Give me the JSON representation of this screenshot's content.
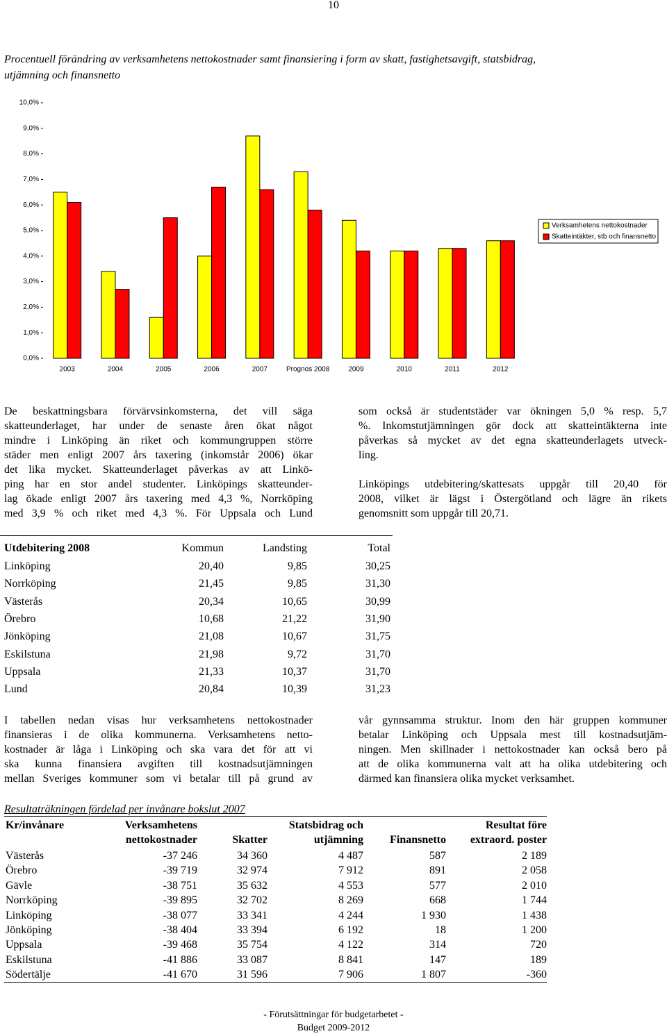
{
  "page_number": "10",
  "chart_data": {
    "type": "bar",
    "title": "Procentuell förändring av verksamhetens nettokostnader samt finansiering i form av skatt, fastighetsavgift, statsbidrag, utjämning och finansnetto",
    "categories": [
      "2003",
      "2004",
      "2005",
      "2006",
      "2007",
      "Prognos 2008",
      "2009",
      "2010",
      "2011",
      "2012"
    ],
    "series": [
      {
        "name": "Verksamhetens nettokostnader",
        "color": "#ffff00",
        "values": [
          6.5,
          3.4,
          1.6,
          4.0,
          8.7,
          7.3,
          5.4,
          4.2,
          4.3,
          4.6
        ]
      },
      {
        "name": "Skatteintäkter, stb och finansnetto",
        "color": "#ff0000",
        "values": [
          6.1,
          2.7,
          5.5,
          6.7,
          6.6,
          5.8,
          4.2,
          4.2,
          4.3,
          4.6
        ]
      }
    ],
    "ylim": [
      0,
      10
    ],
    "yticks": [
      {
        "value": 0,
        "label": "0,0%"
      },
      {
        "value": 1,
        "label": "1,0%"
      },
      {
        "value": 2,
        "label": "2,0%"
      },
      {
        "value": 3,
        "label": "3,0%"
      },
      {
        "value": 4,
        "label": "4,0%"
      },
      {
        "value": 5,
        "label": "5,0%"
      },
      {
        "value": 6,
        "label": "6,0%"
      },
      {
        "value": 7,
        "label": "7,0%"
      },
      {
        "value": 8,
        "label": "8,0%"
      },
      {
        "value": 9,
        "label": "9,0%"
      },
      {
        "value": 10,
        "label": "10,0%"
      }
    ],
    "legend": "right"
  },
  "text_1": {
    "columns": [
      [
        [
          "De beskattningsbara förvärvsinkomsterna, det vill säga",
          "skatteunderlaget, har under de senaste åren ökat något",
          "mindre i Linköping än riket och kommungruppen större",
          "städer men enligt 2007 års taxering (inkomstår 2006) ökar",
          "det lika mycket. Skatteunderlaget påverkas av att Linkö-",
          "ping har en stor andel studenter. Linköpings skatteunder-",
          "lag ökade enligt 2007 års taxering med 4,3 %, Norrköping",
          "med 3,9 % och riket med 4,3 %. För Uppsala och Lund"
        ]
      ],
      [
        [
          "som också är studentstäder var ökningen 5,0 % resp. 5,7",
          "%. Inkomstutjämningen gör dock att skatteintäkterna inte",
          "påverkas så mycket av det egna skatteunderlagets utveck-",
          "ling."
        ],
        [
          "Linköpings utdebitering/skattesats uppgår till 20,40 för",
          "2008, vilket är lägst i Östergötland och lägre än rikets",
          "genomsnitt som uppgår till 20,71."
        ]
      ]
    ]
  },
  "table_1": {
    "header": [
      "Utdebitering 2008",
      "Kommun",
      "Landsting",
      "Total"
    ],
    "rows": [
      [
        "Linköping",
        "20,40",
        "9,85",
        "30,25"
      ],
      [
        "Norrköping",
        "21,45",
        "9,85",
        "31,30"
      ],
      [
        "Västerås",
        "20,34",
        "10,65",
        "30,99"
      ],
      [
        "Örebro",
        "10,68",
        "21,22",
        "31,90"
      ],
      [
        "Jönköping",
        "21,08",
        "10,67",
        "31,75"
      ],
      [
        "Eskilstuna",
        "21,98",
        "9,72",
        "31,70"
      ],
      [
        "Uppsala",
        "21,33",
        "10,37",
        "31,70"
      ],
      [
        "Lund",
        "20,84",
        "10,39",
        "31,23"
      ]
    ]
  },
  "text_2": {
    "columns": [
      [
        [
          "I tabellen nedan visas hur verksamhetens nettokostnader",
          "finansieras i de olika kommunerna. Verksamhetens netto-",
          "kostnader är låga i Linköping och ska vara det för att vi",
          "ska kunna finansiera avgiften till kostnadsutjämningen",
          "mellan Sveriges kommuner som vi betalar till på grund av"
        ]
      ],
      [
        [
          "vår gynnsamma struktur. Inom den här gruppen kommuner",
          "betalar Linköping och Uppsala mest till kostnadsutjäm-",
          "ningen. Men skillnader i nettokostnader kan också bero på",
          "att de olika kommunerna valt att ha olika utdebitering och",
          "därmed kan finansiera olika mycket verksamhet."
        ]
      ]
    ]
  },
  "table_2": {
    "title": "Resultaträkningen fördelad per invånare bokslut 2007",
    "header": [
      [
        "Kr/invånare"
      ],
      [
        "Verksamhetens",
        "nettokostnader"
      ],
      [
        "Skatter"
      ],
      [
        "Statsbidrag och",
        "utjämning"
      ],
      [
        "Finansnetto"
      ],
      [
        "Resultat före",
        "extraord. poster"
      ]
    ],
    "rows": [
      [
        "Västerås",
        "-37 246",
        "34 360",
        "4 487",
        "587",
        "2 189"
      ],
      [
        "Örebro",
        "-39 719",
        "32 974",
        "7 912",
        "891",
        "2 058"
      ],
      [
        "Gävle",
        "-38 751",
        "35 632",
        "4 553",
        "577",
        "2 010"
      ],
      [
        "Norrköping",
        "-39 895",
        "32 702",
        "8 269",
        "668",
        "1 744"
      ],
      [
        "Linköping",
        "-38 077",
        "33 341",
        "4 244",
        "1 930",
        "1 438"
      ],
      [
        "Jönköping",
        "-38 404",
        "33 394",
        "6 192",
        "18",
        "1 200"
      ],
      [
        "Uppsala",
        "-39 468",
        "35 754",
        "4 122",
        "314",
        "720"
      ],
      [
        "Eskilstuna",
        "-41 886",
        "33 087",
        "8 841",
        "147",
        "189"
      ],
      [
        "Södertälje",
        "-41 670",
        "31 596",
        "7 906",
        "1 807",
        "-360"
      ]
    ]
  },
  "footer": [
    "- Förutsättningar för budgetarbetet -",
    "Budget 2009-2012"
  ]
}
